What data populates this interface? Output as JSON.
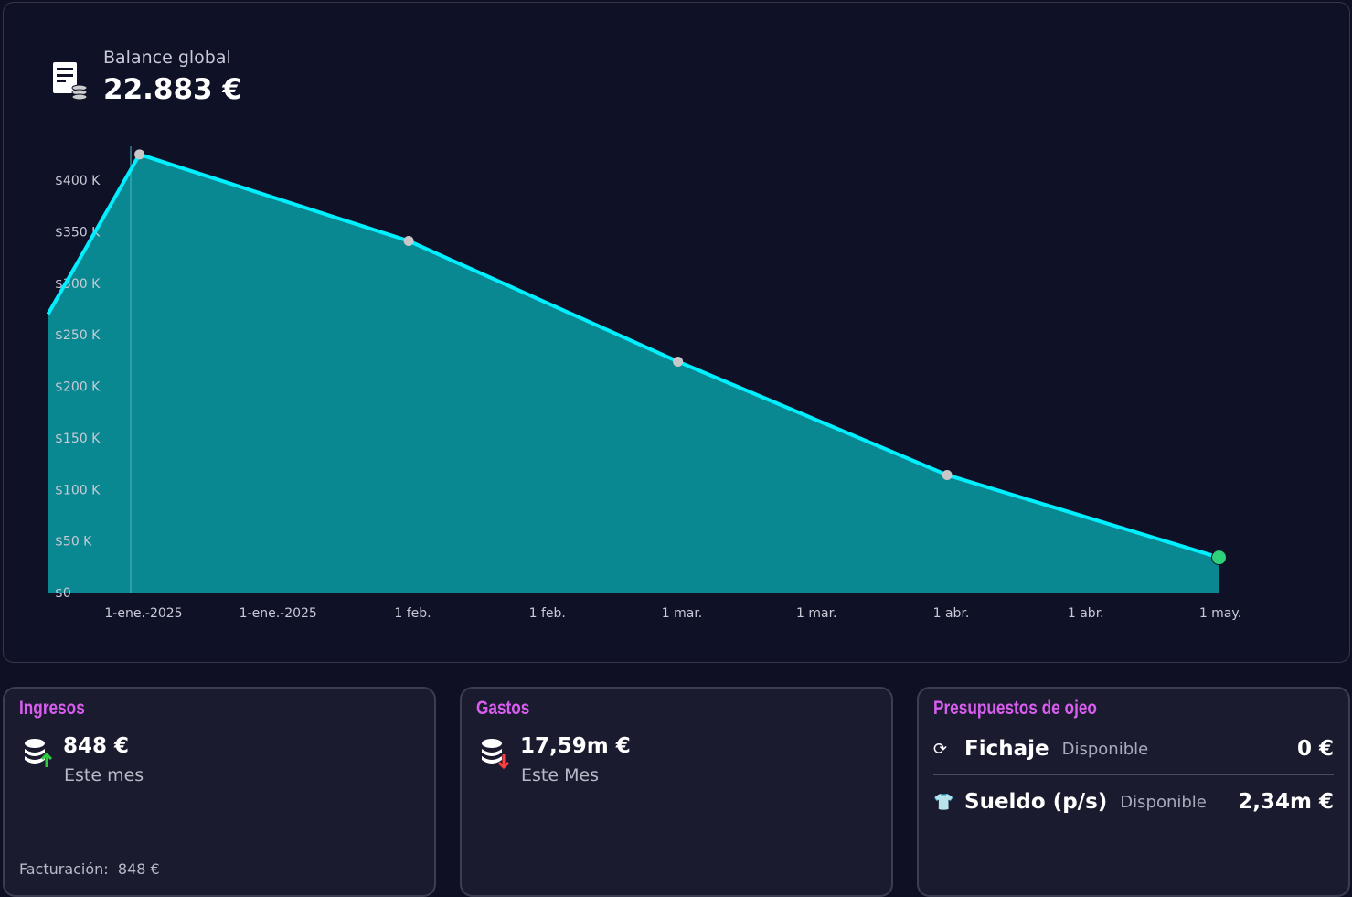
{
  "header": {
    "label": "Balance global",
    "value": "22.883 €"
  },
  "colors": {
    "line": "#00f0ff",
    "area": "#0a8891",
    "accent": "#d95ef0",
    "last_point": "#2ed07a"
  },
  "chart_data": {
    "type": "area",
    "x_labels": [
      "1-ene.-2025",
      "1-ene.-2025",
      "1 feb.",
      "1 feb.",
      "1 mar.",
      "1 mar.",
      "1 abr.",
      "1 abr.",
      "1 may."
    ],
    "y_ticks": [
      "$0",
      "$50 K",
      "$100 K",
      "$150 K",
      "$200 K",
      "$250 K",
      "$300 K",
      "$350 K",
      "$400 K"
    ],
    "y_tick_values": [
      0,
      50000,
      100000,
      150000,
      200000,
      250000,
      300000,
      350000,
      400000
    ],
    "ylim": [
      0,
      450000
    ],
    "points": [
      {
        "x": -0.71,
        "y": 270000,
        "marker": false
      },
      {
        "x": -0.03,
        "y": 425000,
        "marker": true
      },
      {
        "x": 1.97,
        "y": 341000,
        "marker": true
      },
      {
        "x": 3.97,
        "y": 224000,
        "marker": true
      },
      {
        "x": 5.97,
        "y": 114000,
        "marker": true
      },
      {
        "x": 7.99,
        "y": 34000,
        "marker": true,
        "highlight": true
      }
    ]
  },
  "cards": {
    "ingresos": {
      "title": "Ingresos",
      "value": "848 €",
      "period": "Este mes",
      "footer_label": "Facturación:",
      "footer_value": "848 €"
    },
    "gastos": {
      "title": "Gastos",
      "value": "17,59m €",
      "period": "Este Mes"
    },
    "presupuestos": {
      "title": "Presupuestos de ojeo",
      "rows": [
        {
          "name": "Fichaje",
          "status": "Disponible",
          "amount": "0 €"
        },
        {
          "name": "Sueldo (p/s)",
          "status": "Disponible",
          "amount": "2,34m €"
        }
      ]
    }
  }
}
